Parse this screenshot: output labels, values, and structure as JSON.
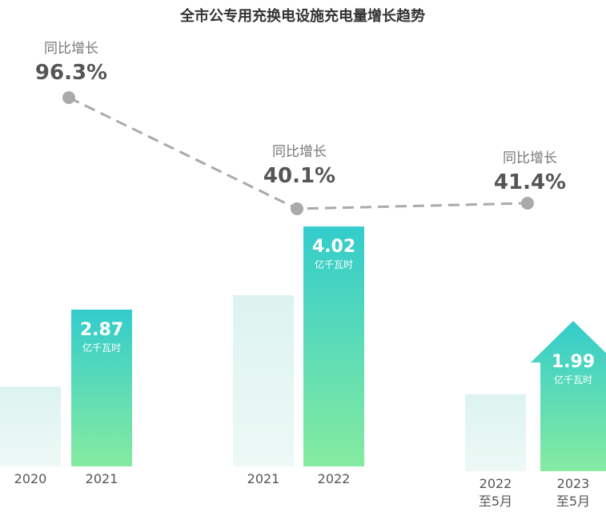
{
  "chart_data": {
    "type": "bar",
    "title": "全市公专用充换电设施充电量增长趋势",
    "unit": "亿千瓦时",
    "growth_label": "同比增长",
    "groups": [
      {
        "bars": [
          {
            "category": [
              "2020"
            ],
            "value": 1.46,
            "highlight": false
          },
          {
            "category": [
              "2021"
            ],
            "value": 2.87,
            "highlight": true,
            "label": "2.87"
          }
        ],
        "growth": "96.3%"
      },
      {
        "bars": [
          {
            "category": [
              "2021"
            ],
            "value": 2.87,
            "highlight": false
          },
          {
            "category": [
              "2022"
            ],
            "value": 4.02,
            "highlight": true,
            "label": "4.02"
          }
        ],
        "growth": "40.1%"
      },
      {
        "bars": [
          {
            "category": [
              "2022",
              "至5月"
            ],
            "value": 1.41,
            "highlight": false
          },
          {
            "category": [
              "2023",
              "至5月"
            ],
            "value": 1.99,
            "highlight": true,
            "label": "1.99",
            "arrow": true
          }
        ],
        "growth": "41.4%"
      }
    ],
    "colors": {
      "highlight_top": "#33CCCC",
      "highlight_bottom": "#85EBA0",
      "muted_top": "#DCF3F0",
      "muted_bottom": "#EEF9F6",
      "growth_line": "#AAAAAA"
    }
  }
}
